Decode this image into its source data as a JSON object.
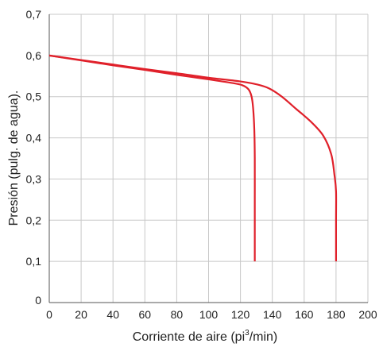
{
  "chart_data": {
    "type": "line",
    "xlabel_main": "Corriente de aire (pi",
    "xlabel_sup": "3",
    "xlabel_tail": "/min)",
    "ylabel": "Presión (pulg. de agua).",
    "xlim": [
      0,
      200
    ],
    "ylim": [
      0,
      0.7
    ],
    "x_ticks": [
      0,
      20,
      40,
      60,
      80,
      100,
      120,
      140,
      160,
      180,
      200
    ],
    "x_tick_labels": [
      "0",
      "20",
      "40",
      "60",
      "80",
      "100",
      "120",
      "140",
      "160",
      "180",
      "200"
    ],
    "y_ticks": [
      0,
      0.1,
      0.2,
      0.3,
      0.4,
      0.5,
      0.6,
      0.7
    ],
    "y_tick_labels": [
      "0",
      "0,1",
      "0,2",
      "0,3",
      "0,4",
      "0,5",
      "0,6",
      "0,7"
    ],
    "grid": true,
    "line_color": "#e0202a",
    "series": [
      {
        "points": [
          [
            0,
            0.6
          ],
          [
            20,
            0.588
          ],
          [
            40,
            0.576
          ],
          [
            60,
            0.565
          ],
          [
            80,
            0.553
          ],
          [
            100,
            0.542
          ],
          [
            115,
            0.533
          ],
          [
            121,
            0.528
          ],
          [
            125,
            0.518
          ],
          [
            127,
            0.5
          ],
          [
            128,
            0.47
          ],
          [
            128.7,
            0.42
          ],
          [
            129,
            0.35
          ],
          [
            129,
            0.25
          ],
          [
            129,
            0.15
          ],
          [
            129,
            0.1
          ]
        ]
      },
      {
        "points": [
          [
            0,
            0.6
          ],
          [
            20,
            0.589
          ],
          [
            40,
            0.578
          ],
          [
            60,
            0.567
          ],
          [
            80,
            0.557
          ],
          [
            100,
            0.546
          ],
          [
            120,
            0.537
          ],
          [
            130,
            0.53
          ],
          [
            138,
            0.52
          ],
          [
            146,
            0.5
          ],
          [
            155,
            0.47
          ],
          [
            164,
            0.44
          ],
          [
            172,
            0.405
          ],
          [
            177,
            0.36
          ],
          [
            179,
            0.31
          ],
          [
            180,
            0.27
          ],
          [
            180,
            0.2
          ],
          [
            180,
            0.1
          ]
        ]
      }
    ]
  }
}
